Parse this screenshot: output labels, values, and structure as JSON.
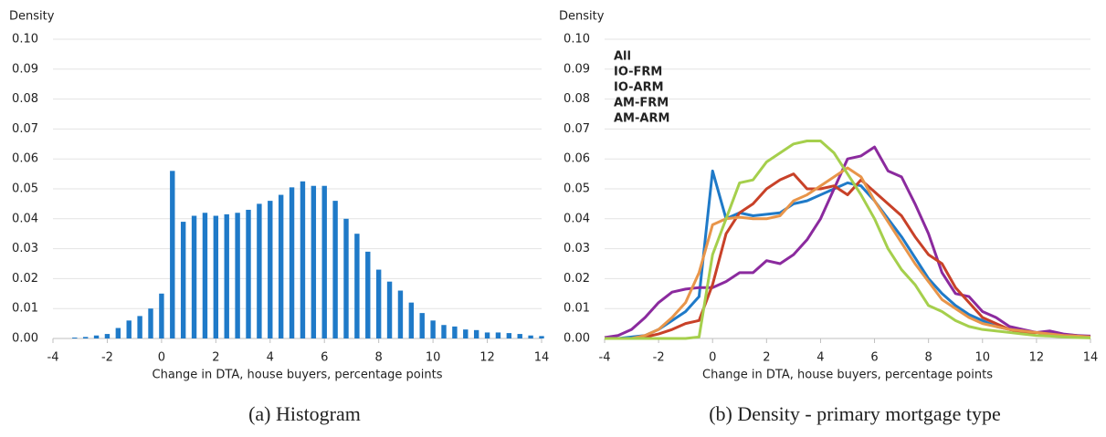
{
  "chart_data": [
    {
      "type": "bar",
      "ylabel": "Density",
      "xlabel": "Change in DTA, house buyers, percentage points",
      "caption": "(a) Histogram",
      "color": "#1f7ac8",
      "grid": true,
      "xlim": [
        -4,
        14
      ],
      "xticks": [
        -4,
        -2,
        0,
        2,
        4,
        6,
        8,
        10,
        12,
        14
      ],
      "ylim": [
        0,
        0.1
      ],
      "yticks": [
        {
          "value": 0,
          "label": "0.00"
        },
        {
          "value": 0.01,
          "label": "0.01"
        },
        {
          "value": 0.02,
          "label": "0.02"
        },
        {
          "value": 0.03,
          "label": "0.03"
        },
        {
          "value": 0.04,
          "label": "0.04"
        },
        {
          "value": 0.05,
          "label": "0.05"
        },
        {
          "value": 0.06,
          "label": "0.06"
        },
        {
          "value": 0.07,
          "label": "0.07"
        },
        {
          "value": 0.08,
          "label": "0.08"
        },
        {
          "value": 0.09,
          "label": "0.09"
        },
        {
          "value": 0.1,
          "label": "0.10"
        }
      ],
      "x": [
        -3.2,
        -2.8,
        -2.4,
        -2.0,
        -1.6,
        -1.2,
        -0.8,
        -0.4,
        0.0,
        0.4,
        0.8,
        1.2,
        1.6,
        2.0,
        2.4,
        2.8,
        3.2,
        3.6,
        4.0,
        4.4,
        4.8,
        5.2,
        5.6,
        6.0,
        6.4,
        6.8,
        7.2,
        7.6,
        8.0,
        8.4,
        8.8,
        9.2,
        9.6,
        10.0,
        10.4,
        10.8,
        11.2,
        11.6,
        12.0,
        12.4,
        12.8,
        13.2,
        13.6,
        14.0
      ],
      "values": [
        0.0003,
        0.0005,
        0.001,
        0.0015,
        0.0035,
        0.006,
        0.0075,
        0.01,
        0.015,
        0.056,
        0.039,
        0.041,
        0.042,
        0.041,
        0.0415,
        0.042,
        0.043,
        0.045,
        0.046,
        0.048,
        0.0505,
        0.0525,
        0.051,
        0.051,
        0.046,
        0.04,
        0.035,
        0.029,
        0.023,
        0.019,
        0.016,
        0.012,
        0.0085,
        0.006,
        0.0045,
        0.004,
        0.003,
        0.0028,
        0.002,
        0.002,
        0.0018,
        0.0015,
        0.001,
        0.0008
      ]
    },
    {
      "type": "line",
      "ylabel": "Density",
      "xlabel": "Change in DTA, house buyers, percentage points",
      "caption": "(b) Density - primary mortgage type",
      "grid": true,
      "legend": "upper left",
      "xlim": [
        -4,
        14
      ],
      "xticks": [
        -4,
        -2,
        0,
        2,
        4,
        6,
        8,
        10,
        12,
        14
      ],
      "ylim": [
        0,
        0.1
      ],
      "yticks": [
        {
          "value": 0,
          "label": "0.00"
        },
        {
          "value": 0.01,
          "label": "0.01"
        },
        {
          "value": 0.02,
          "label": "0.02"
        },
        {
          "value": 0.03,
          "label": "0.03"
        },
        {
          "value": 0.04,
          "label": "0.04"
        },
        {
          "value": 0.05,
          "label": "0.05"
        },
        {
          "value": 0.06,
          "label": "0.06"
        },
        {
          "value": 0.07,
          "label": "0.07"
        },
        {
          "value": 0.08,
          "label": "0.08"
        },
        {
          "value": 0.09,
          "label": "0.09"
        },
        {
          "value": 0.1,
          "label": "0.10"
        }
      ],
      "x": [
        -4,
        -3.5,
        -3,
        -2.5,
        -2,
        -1.5,
        -1,
        -0.5,
        0,
        0.5,
        1,
        1.5,
        2,
        2.5,
        3,
        3.5,
        4,
        4.5,
        5,
        5.5,
        6,
        6.5,
        7,
        7.5,
        8,
        8.5,
        9,
        9.5,
        10,
        10.5,
        11,
        11.5,
        12,
        12.5,
        13,
        13.5,
        14
      ],
      "series": [
        {
          "name": "All",
          "color": "#1f7ac8",
          "values": [
            0,
            0,
            0.0005,
            0.001,
            0.003,
            0.006,
            0.009,
            0.014,
            0.056,
            0.04,
            0.042,
            0.041,
            0.0415,
            0.042,
            0.045,
            0.046,
            0.048,
            0.05,
            0.052,
            0.051,
            0.046,
            0.04,
            0.034,
            0.027,
            0.02,
            0.015,
            0.011,
            0.008,
            0.006,
            0.004,
            0.003,
            0.0025,
            0.002,
            0.0018,
            0.0013,
            0.001,
            0.0005
          ]
        },
        {
          "name": "IO-FRM",
          "color": "#8b2a9e",
          "values": [
            0.0003,
            0.001,
            0.003,
            0.007,
            0.012,
            0.0155,
            0.0165,
            0.017,
            0.017,
            0.019,
            0.022,
            0.022,
            0.026,
            0.025,
            0.028,
            0.033,
            0.04,
            0.05,
            0.06,
            0.061,
            0.064,
            0.056,
            0.054,
            0.045,
            0.035,
            0.022,
            0.015,
            0.014,
            0.009,
            0.007,
            0.004,
            0.003,
            0.002,
            0.0025,
            0.0015,
            0.001,
            0.0008
          ]
        },
        {
          "name": "IO-ARM",
          "color": "#c84128",
          "values": [
            0,
            0,
            0,
            0.0005,
            0.0015,
            0.003,
            0.005,
            0.006,
            0.018,
            0.035,
            0.042,
            0.045,
            0.05,
            0.053,
            0.055,
            0.05,
            0.05,
            0.051,
            0.048,
            0.053,
            0.049,
            0.045,
            0.041,
            0.034,
            0.028,
            0.025,
            0.017,
            0.012,
            0.007,
            0.005,
            0.003,
            0.002,
            0.002,
            0.0015,
            0.001,
            0.0008,
            0.0005
          ]
        },
        {
          "name": "AM-FRM",
          "color": "#e8954a",
          "values": [
            0,
            0,
            0,
            0.001,
            0.003,
            0.007,
            0.012,
            0.022,
            0.038,
            0.04,
            0.0405,
            0.04,
            0.04,
            0.041,
            0.046,
            0.048,
            0.051,
            0.054,
            0.057,
            0.054,
            0.046,
            0.039,
            0.032,
            0.025,
            0.019,
            0.013,
            0.01,
            0.007,
            0.005,
            0.004,
            0.003,
            0.0025,
            0.002,
            0.0015,
            0.001,
            0.0008,
            0.0005
          ]
        },
        {
          "name": "AM-ARM",
          "color": "#a5cf4c",
          "values": [
            0,
            0,
            0,
            0,
            0,
            0,
            0,
            0.0005,
            0.028,
            0.04,
            0.052,
            0.053,
            0.059,
            0.062,
            0.065,
            0.066,
            0.066,
            0.062,
            0.055,
            0.048,
            0.04,
            0.03,
            0.023,
            0.018,
            0.011,
            0.009,
            0.006,
            0.004,
            0.003,
            0.0025,
            0.002,
            0.0015,
            0.001,
            0.0008,
            0.0005,
            0.0003,
            0.0002
          ]
        }
      ]
    }
  ]
}
